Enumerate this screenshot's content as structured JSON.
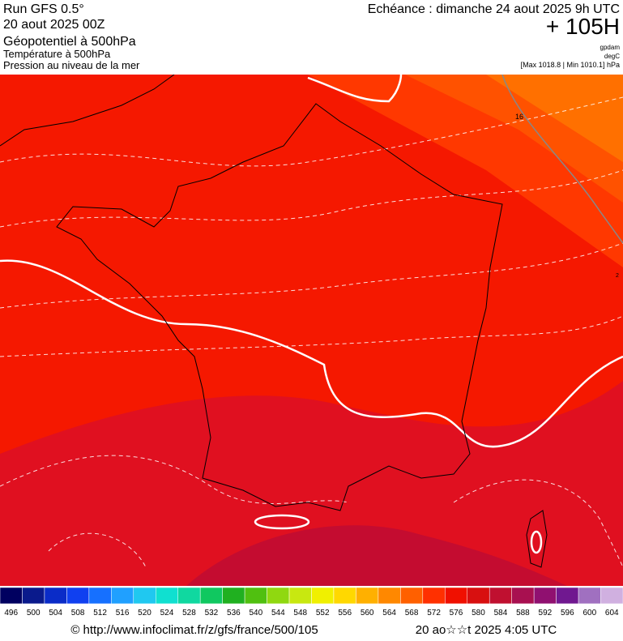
{
  "header": {
    "title": "Run GFS 0.5°",
    "run": "20 aout 2025 00Z",
    "valid": "Echéance : dimanche 24 aout 2025 9h UTC",
    "lead": "+ 105H",
    "fields": [
      "Géopotentiel à 500hPa",
      "Température à 500hPa",
      "Pression au niveau de la mer"
    ],
    "units": [
      "gpdam",
      "degC"
    ],
    "range": "[Max 1018.8 | Min 1010.1] hPa"
  },
  "map": {
    "contour_labels": [
      "16",
      "2"
    ]
  },
  "legend": {
    "ticks": [
      496,
      500,
      504,
      508,
      512,
      516,
      520,
      524,
      528,
      532,
      536,
      540,
      544,
      548,
      552,
      556,
      560,
      564,
      568,
      572,
      576,
      580,
      584,
      588,
      592,
      596,
      600,
      604
    ],
    "colors": [
      "#000060",
      "#0a1a8c",
      "#0a2cc8",
      "#1040f0",
      "#1670ff",
      "#20a0ff",
      "#20c8f0",
      "#10e0d0",
      "#10d8a0",
      "#10c860",
      "#20b020",
      "#50c010",
      "#90d810",
      "#c8e810",
      "#f0f000",
      "#ffd800",
      "#ffb000",
      "#ff8800",
      "#ff6000",
      "#ff3000",
      "#f01000",
      "#d81010",
      "#c01030",
      "#a81050",
      "#901070",
      "#701890",
      "#a070c0",
      "#d0b0e0"
    ]
  },
  "footer": {
    "url": "© http://www.infoclimat.fr/z/gfs/france/500/105",
    "date": "20 ao☆☆t 2025  4:05 UTC"
  }
}
